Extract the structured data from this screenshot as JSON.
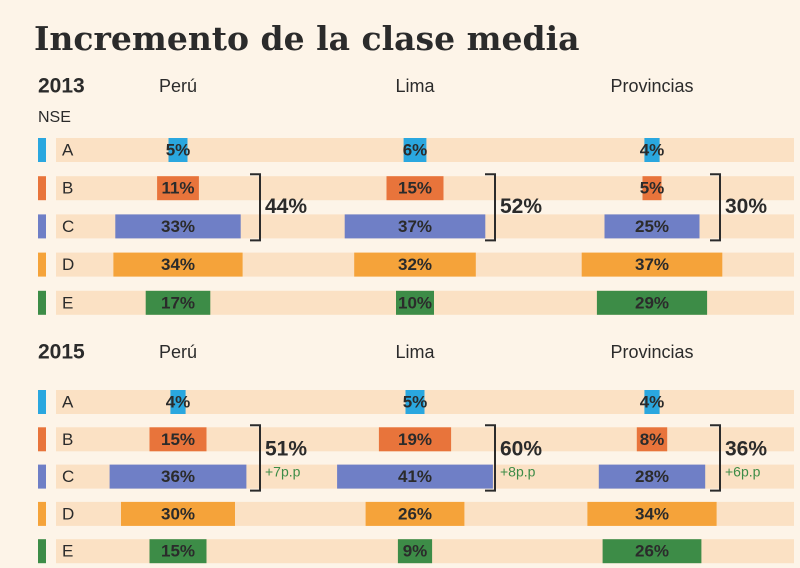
{
  "title": "Incremento de la clase media",
  "chart_data": [
    {
      "type": "bar",
      "title": "2013",
      "subtitle": "NSE",
      "categories": [
        "A",
        "B",
        "C",
        "D",
        "E"
      ],
      "colors": [
        "#2aa7df",
        "#e8743b",
        "#6f7fc6",
        "#f5a33a",
        "#3d8c47"
      ],
      "series": [
        {
          "name": "Perú",
          "values": [
            5,
            11,
            33,
            34,
            17
          ],
          "value_labels": [
            "5%",
            "11%",
            "33%",
            "34%",
            "17%"
          ],
          "total": {
            "value": 44,
            "label": "44%"
          }
        },
        {
          "name": "Lima",
          "values": [
            6,
            15,
            37,
            32,
            10
          ],
          "value_labels": [
            "6%",
            "15%",
            "37%",
            "32%",
            "10%"
          ],
          "total": {
            "value": 52,
            "label": "52%"
          }
        },
        {
          "name": "Provincias",
          "values": [
            4,
            5,
            25,
            37,
            29
          ],
          "value_labels": [
            "4%",
            "5%",
            "25%",
            "37%",
            "29%"
          ],
          "total": {
            "value": 30,
            "label": "30%"
          }
        }
      ]
    },
    {
      "type": "bar",
      "title": "2015",
      "categories": [
        "A",
        "B",
        "C",
        "D",
        "E"
      ],
      "colors": [
        "#2aa7df",
        "#e8743b",
        "#6f7fc6",
        "#f5a33a",
        "#3d8c47"
      ],
      "series": [
        {
          "name": "Perú",
          "values": [
            4,
            15,
            36,
            30,
            15
          ],
          "value_labels": [
            "4%",
            "15%",
            "36%",
            "30%",
            "15%"
          ],
          "total": {
            "value": 51,
            "label": "51%"
          },
          "change": {
            "value": 7,
            "label": "+7p.p"
          }
        },
        {
          "name": "Lima",
          "values": [
            5,
            19,
            41,
            26,
            9
          ],
          "value_labels": [
            "5%",
            "19%",
            "41%",
            "26%",
            "9%"
          ],
          "total": {
            "value": 60,
            "label": "60%"
          },
          "change": {
            "value": 8,
            "label": "+8p.p"
          }
        },
        {
          "name": "Provincias",
          "values": [
            4,
            8,
            28,
            34,
            26
          ],
          "value_labels": [
            "4%",
            "8%",
            "28%",
            "34%",
            "26%"
          ],
          "total": {
            "value": 36,
            "label": "36%"
          },
          "change": {
            "value": 6,
            "label": "+6p.p"
          }
        }
      ]
    }
  ]
}
